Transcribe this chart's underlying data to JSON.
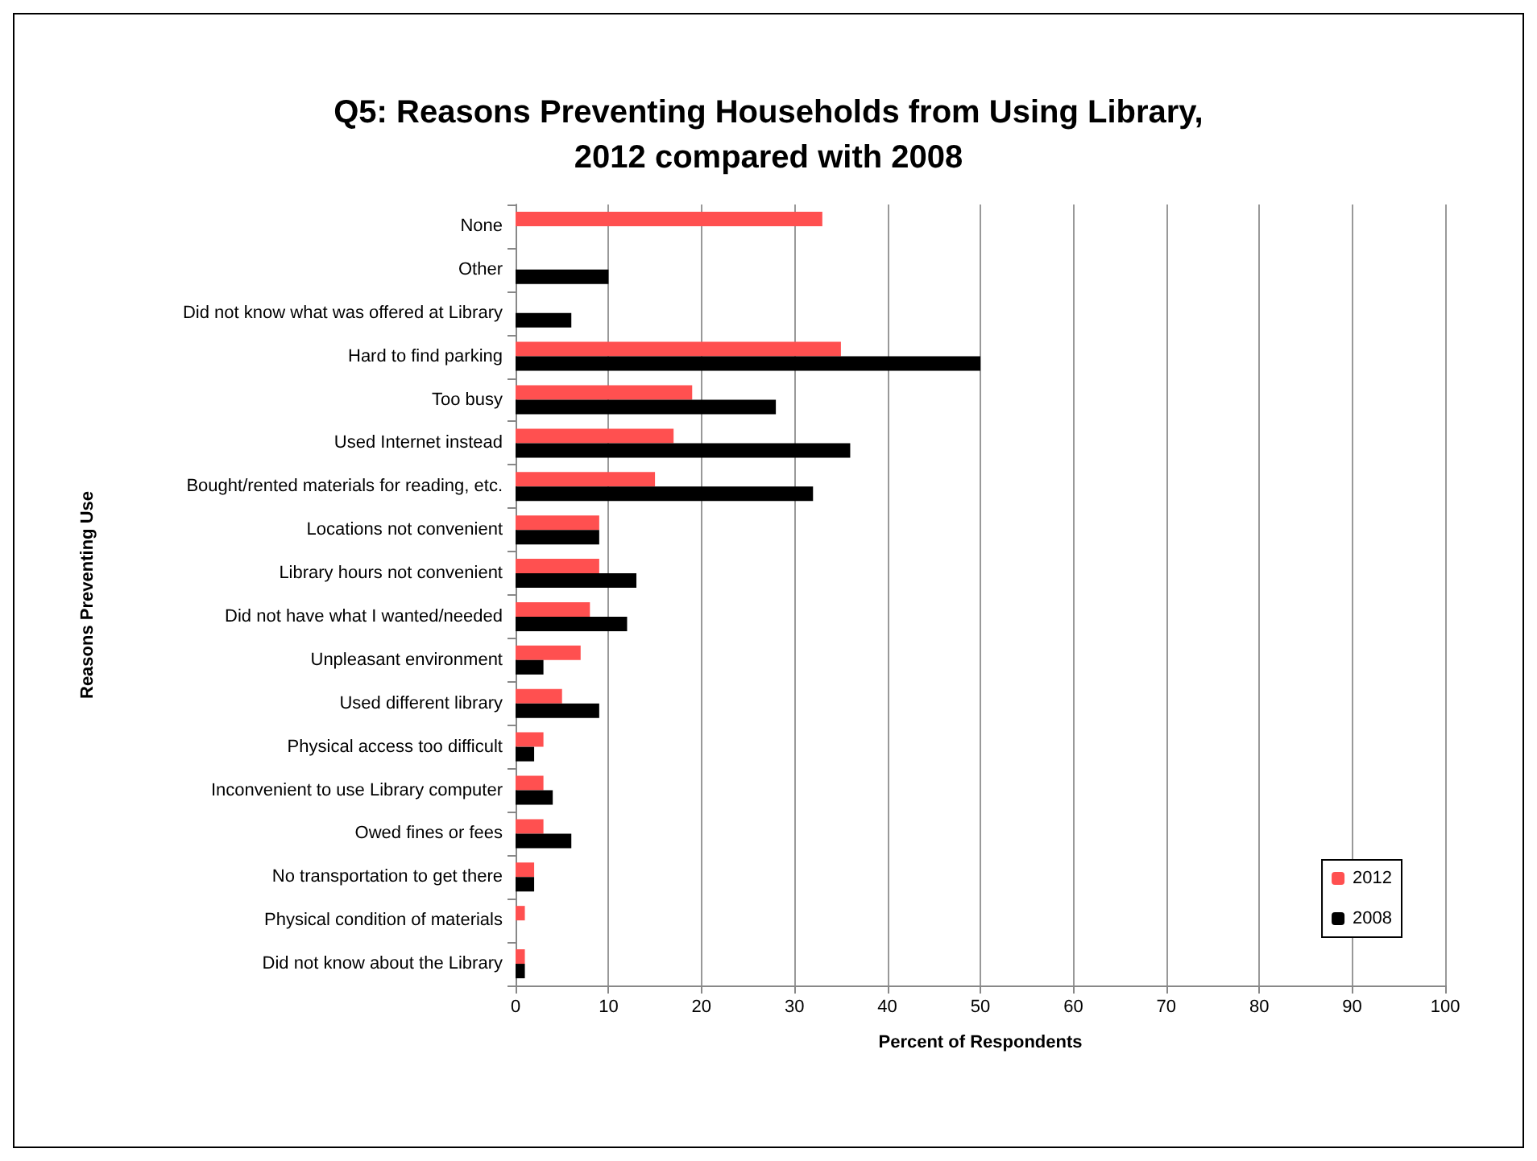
{
  "chart_data": {
    "type": "bar",
    "orientation": "horizontal",
    "title": "Q5: Reasons Preventing Households from Using Library,\n2012 compared with 2008",
    "xlabel": "Percent of Respondents",
    "ylabel": "Reasons Preventing Use",
    "categories": [
      "None",
      "Other",
      "Did not know what was offered at Library",
      "Hard to find parking",
      "Too busy",
      "Used Internet instead",
      "Bought/rented materials for reading, etc.",
      "Locations not convenient",
      "Library hours not convenient",
      "Did not have what I wanted/needed",
      "Unpleasant environment",
      "Used different library",
      "Physical access too difficult",
      "Inconvenient to use Library computer",
      "Owed fines or fees",
      "No transportation to get there",
      "Physical condition of materials",
      "Did not know about the Library"
    ],
    "series": [
      {
        "name": "2012",
        "color": "#ff5050",
        "values": [
          33,
          null,
          null,
          35,
          19,
          17,
          15,
          9,
          9,
          8,
          7,
          5,
          3,
          3,
          3,
          2,
          1,
          1
        ]
      },
      {
        "name": "2008",
        "color": "#000000",
        "values": [
          null,
          10,
          6,
          50,
          28,
          36,
          32,
          9,
          13,
          12,
          3,
          9,
          2,
          4,
          6,
          2,
          null,
          1
        ]
      }
    ],
    "xlim": [
      0,
      100
    ],
    "xticks": [
      0,
      10,
      20,
      30,
      40,
      50,
      60,
      70,
      80,
      90,
      100
    ],
    "grid": "x",
    "legend": "bottom right"
  }
}
